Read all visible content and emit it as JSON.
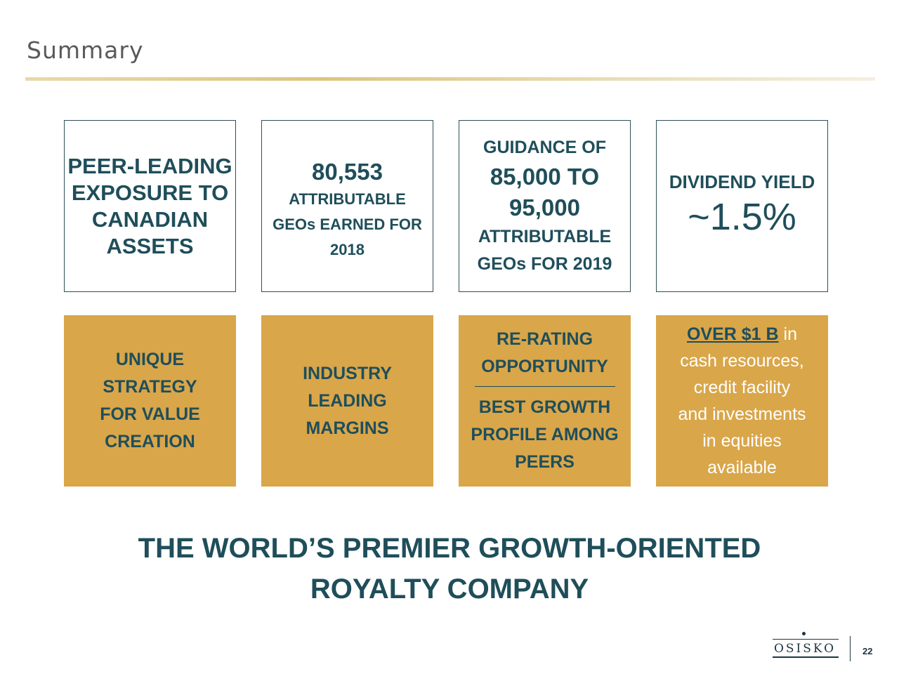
{
  "slide": {
    "title": "Summary",
    "page_number": "22"
  },
  "top_boxes": [
    {
      "lines": [
        "PEER-LEADING",
        "EXPOSURE TO",
        "CANADIAN",
        "ASSETS"
      ]
    },
    {
      "value": "80,553",
      "lines": [
        "ATTRIBUTABLE",
        "GEOs EARNED FOR",
        "2018"
      ]
    },
    {
      "lines_top": [
        "GUIDANCE OF"
      ],
      "value_lines": [
        "85,000 TO",
        "95,000"
      ],
      "lines_bottom": [
        "ATTRIBUTABLE",
        "GEOs FOR 2019"
      ]
    },
    {
      "label": "DIVIDEND YIELD",
      "value": "~1.5%"
    }
  ],
  "bottom_boxes": [
    {
      "lines": [
        "UNIQUE",
        "STRATEGY",
        "FOR VALUE",
        "CREATION"
      ]
    },
    {
      "lines": [
        "INDUSTRY",
        "LEADING",
        "MARGINS"
      ]
    },
    {
      "lines_top": [
        "RE-RATING",
        "OPPORTUNITY"
      ],
      "lines_bottom": [
        "BEST GROWTH",
        "PROFILE AMONG",
        "PEERS"
      ]
    },
    {
      "highlight": "OVER $1 B",
      "first_rest": " in",
      "lines": [
        "cash resources,",
        "credit facility",
        "and investments",
        "in equities",
        "available"
      ]
    }
  ],
  "tagline": {
    "line1": "THE WORLD’S PREMIER GROWTH-ORIENTED",
    "line2": "ROYALTY COMPANY"
  },
  "logo": {
    "text": "OSISKO"
  },
  "colors": {
    "teal": "#1f4e5a",
    "gold": "#d9a64a",
    "title_gray": "#5a5a5a"
  }
}
